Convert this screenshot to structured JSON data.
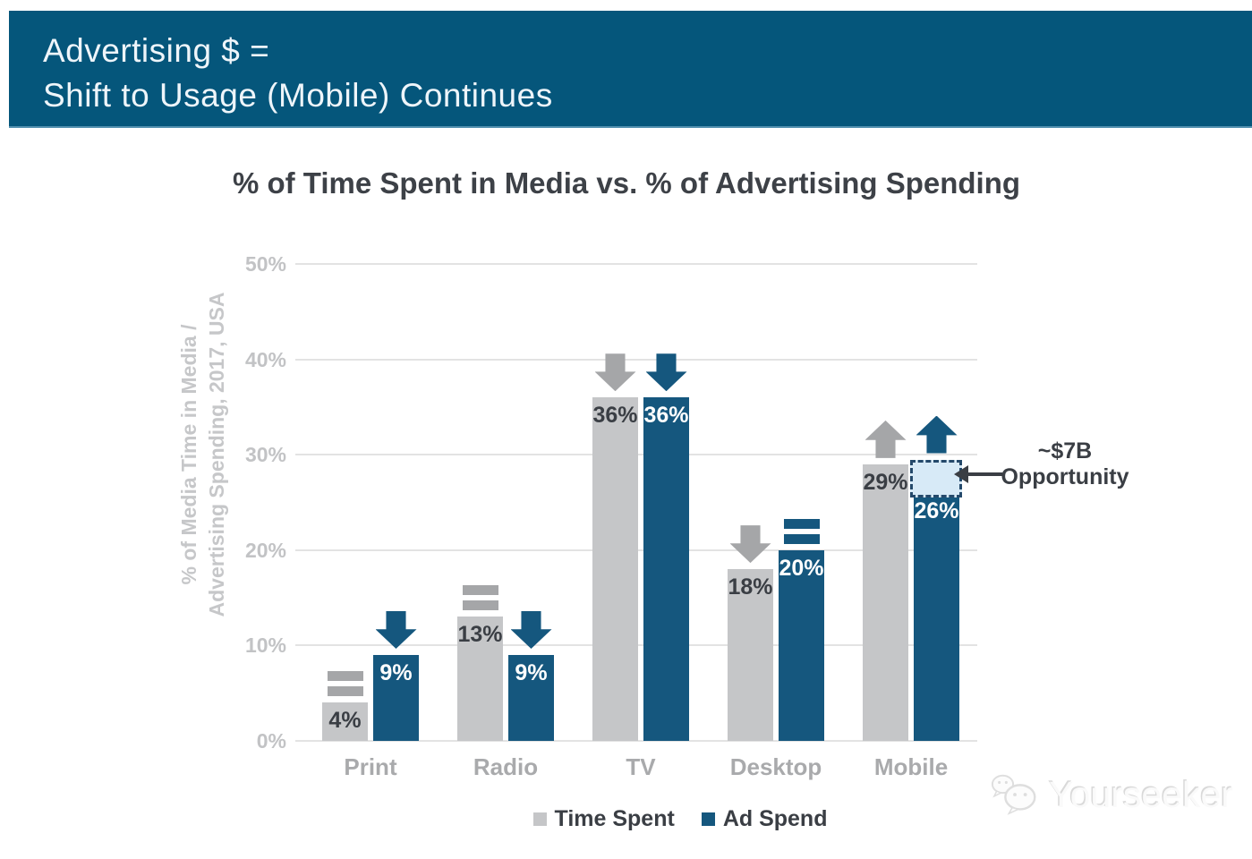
{
  "banner": {
    "line1": "Advertising $ =",
    "line2": "Shift to Usage (Mobile) Continues"
  },
  "chart_data": {
    "type": "bar",
    "title": "% of Time Spent in Media vs. % of Advertising Spending",
    "ylabel_line1": "% of Media Time in Media /",
    "ylabel_line2": "Advertising Spending, 2017, USA",
    "categories": [
      "Print",
      "Radio",
      "TV",
      "Desktop",
      "Mobile"
    ],
    "series": [
      {
        "name": "Time Spent",
        "color": "#c5c6c8",
        "values": [
          4,
          13,
          36,
          18,
          29
        ],
        "trend": [
          "equal",
          "equal",
          "down",
          "down",
          "up"
        ],
        "trend_color": "#a5a6a8"
      },
      {
        "name": "Ad Spend",
        "color": "#15577e",
        "values": [
          9,
          9,
          36,
          20,
          26
        ],
        "trend": [
          "down",
          "down",
          "down",
          "equal",
          "up"
        ],
        "trend_color": "#15577e"
      }
    ],
    "yticks": [
      "0%",
      "10%",
      "20%",
      "30%",
      "40%",
      "50%"
    ],
    "ytick_values": [
      0,
      10,
      20,
      30,
      40,
      50
    ],
    "ylim": [
      0,
      50
    ],
    "grid": true,
    "legend_position": "bottom",
    "annotation": {
      "line1": "~$7B",
      "line2": "Opportunity",
      "box_from_pct": 26,
      "box_to_pct": 29.5,
      "box_fill": "#d7eaf7",
      "box_border": "#24496b"
    }
  },
  "legend": {
    "items": [
      {
        "label": "Time Spent"
      },
      {
        "label": "Ad Spend"
      }
    ]
  },
  "watermark": {
    "text": "Yourseeker"
  },
  "colors": {
    "banner_bg": "#05567b",
    "banner_text": "#eef5fa",
    "title_text": "#3d4147",
    "grid": "#e3e3e3",
    "axis_text": "#c2c3c5",
    "category_text": "#a9aaac",
    "value_dark": "#3a3e44",
    "value_light": "#ffffff",
    "annotation_text": "#3a3e44"
  }
}
